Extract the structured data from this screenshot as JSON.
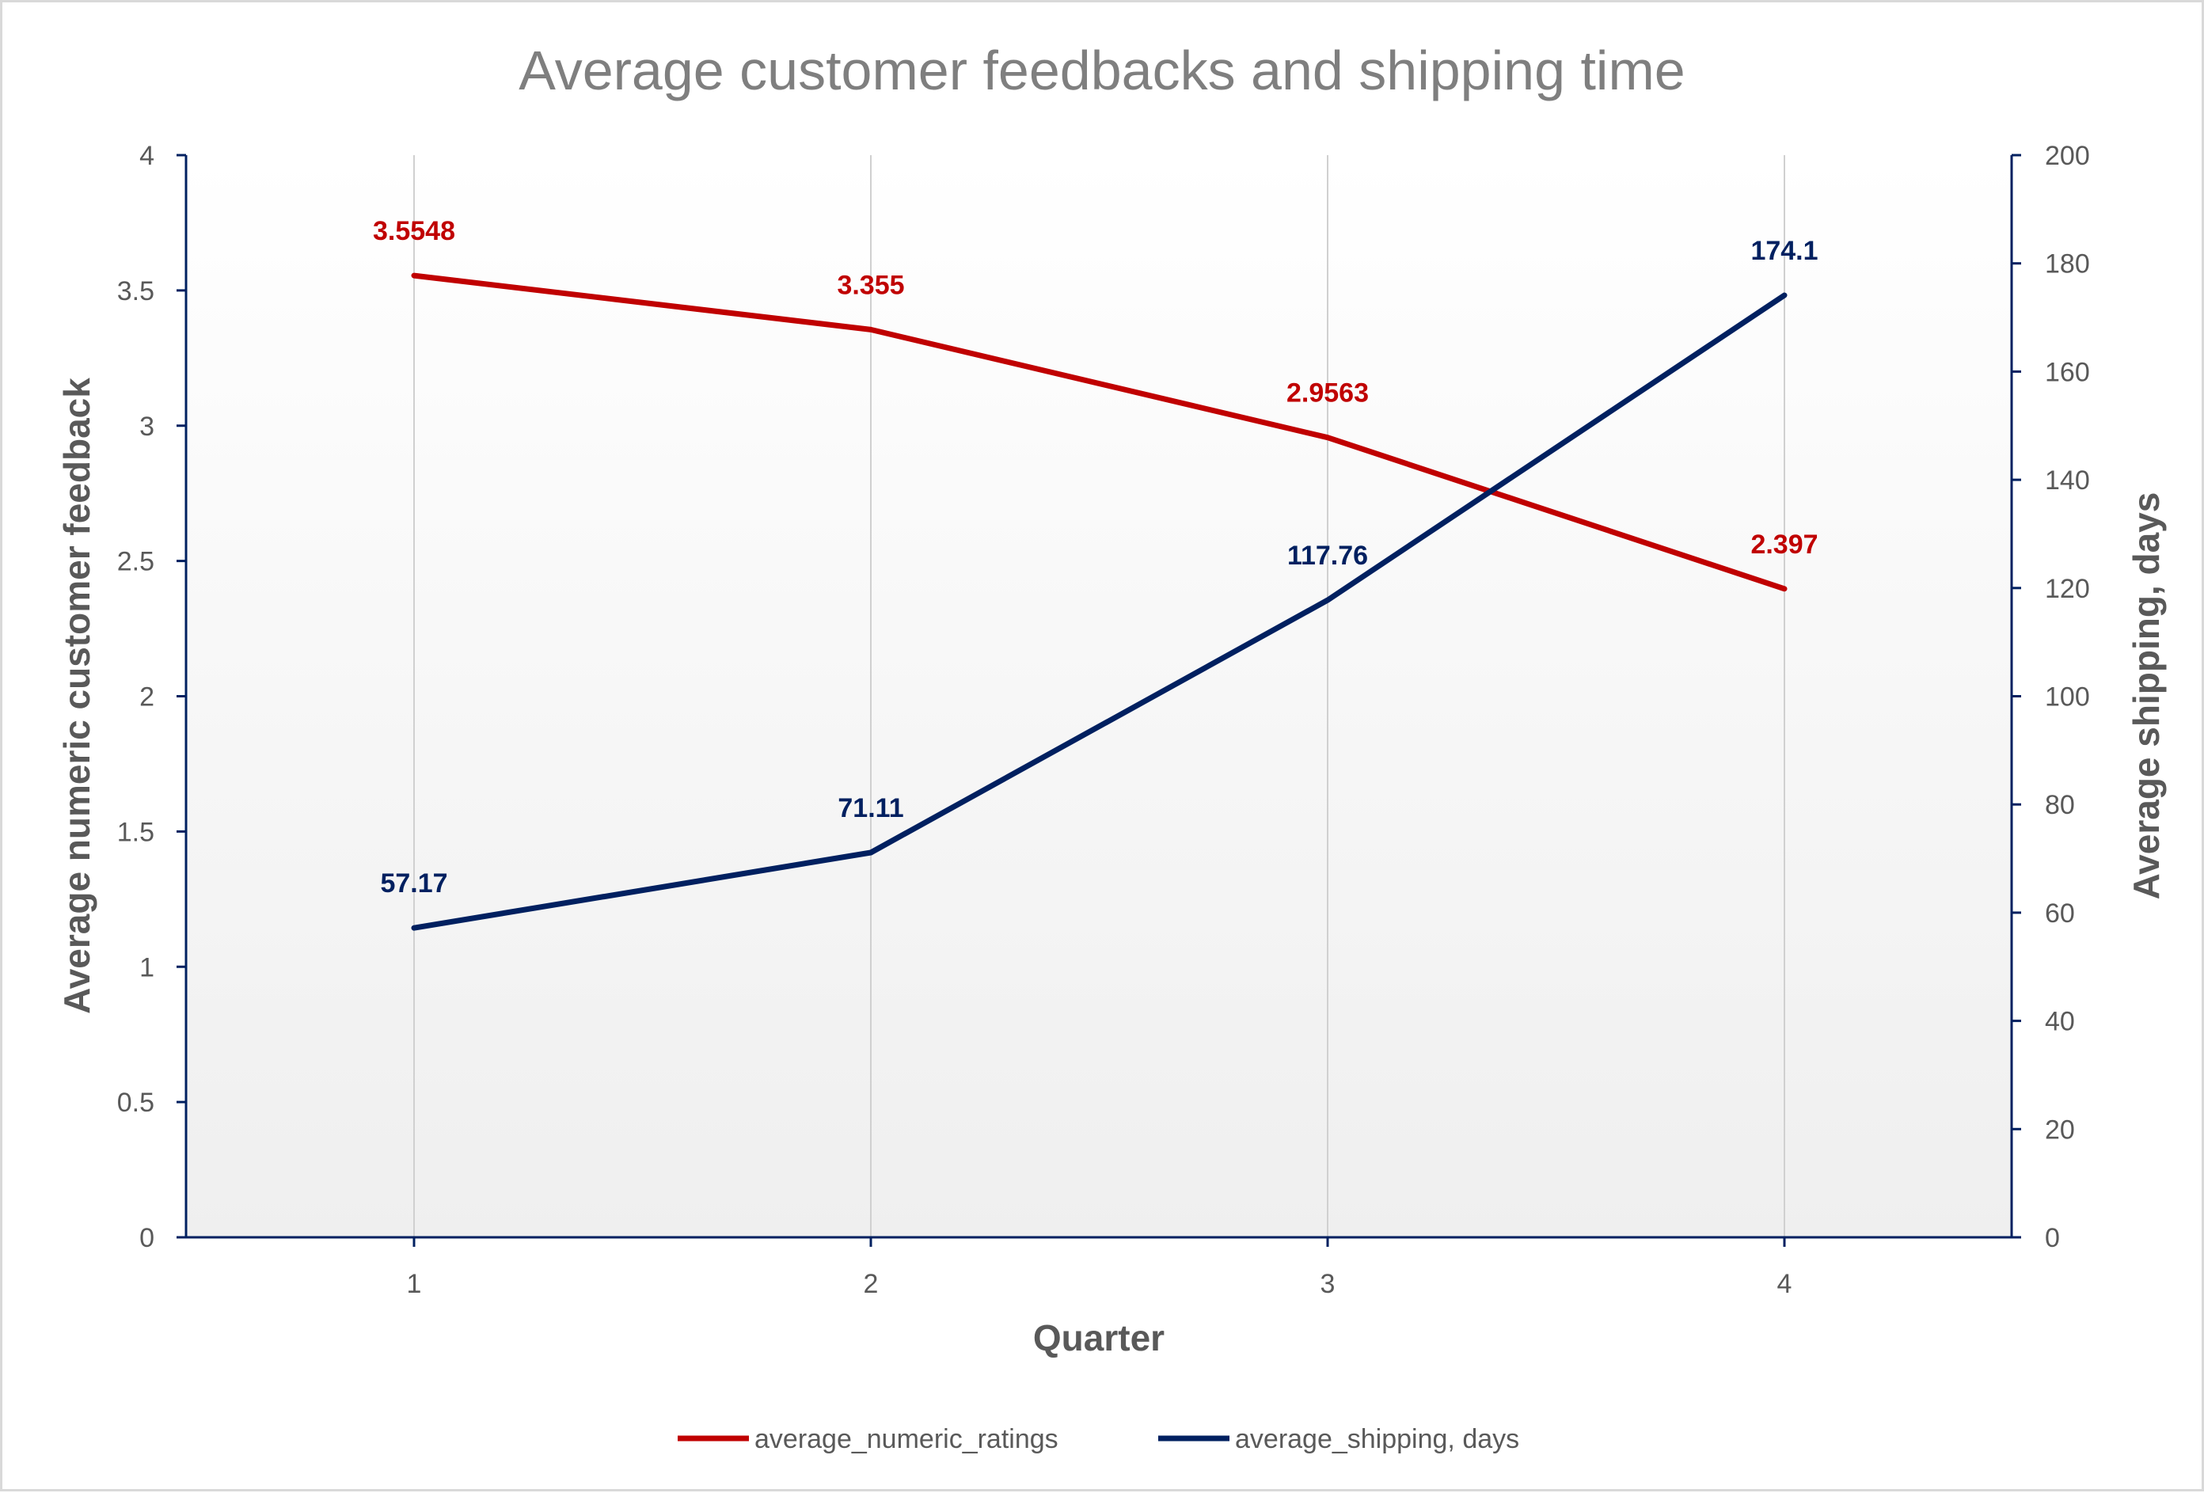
{
  "chart_data": {
    "type": "line",
    "title": "Average customer feedbacks and shipping time",
    "xlabel": "Quarter",
    "ylabel": "Average numeric customer feedback",
    "y2label": "Average shipping, days",
    "x": [
      1,
      2,
      3,
      4
    ],
    "x_tick_labels": [
      "1",
      "2",
      "3",
      "4"
    ],
    "ylim": [
      0,
      4
    ],
    "y_ticks": [
      0,
      0.5,
      1,
      1.5,
      2,
      2.5,
      3,
      3.5,
      4
    ],
    "y_tick_labels": [
      "0",
      "0.5",
      "1",
      "1.5",
      "2",
      "2.5",
      "3",
      "3.5",
      "4"
    ],
    "y2lim": [
      0,
      200
    ],
    "y2_ticks": [
      0,
      20,
      40,
      60,
      80,
      100,
      120,
      140,
      160,
      180,
      200
    ],
    "y2_tick_labels": [
      "0",
      "20",
      "40",
      "60",
      "80",
      "100",
      "120",
      "140",
      "160",
      "180",
      "200"
    ],
    "grid": "vertical",
    "legend_position": "bottom",
    "series": [
      {
        "name": "average_numeric_ratings",
        "axis": "left",
        "color": "#c00000",
        "values": [
          3.5548,
          3.355,
          2.9563,
          2.397
        ],
        "labels": [
          "3.5548",
          "3.355",
          "2.9563",
          "2.397"
        ]
      },
      {
        "name": "average_shipping, days",
        "axis": "right",
        "color": "#002060",
        "values": [
          57.17,
          71.11,
          117.76,
          174.1
        ],
        "labels": [
          "57.17",
          "71.11",
          "117.76",
          "174.1"
        ]
      }
    ]
  }
}
